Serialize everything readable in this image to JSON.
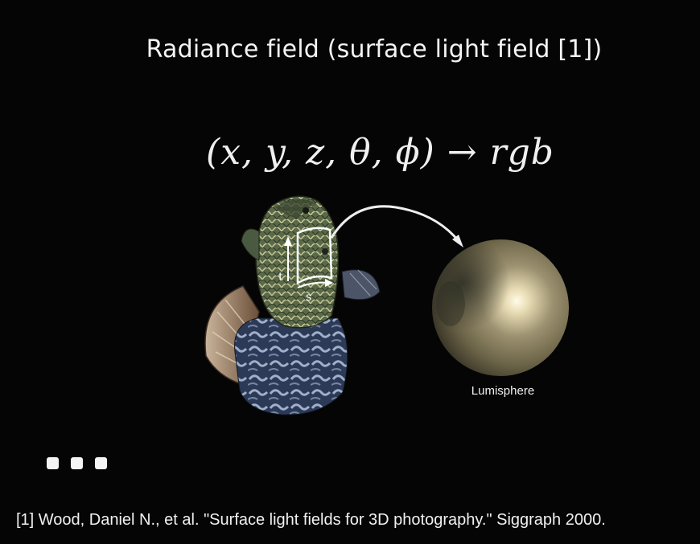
{
  "slide": {
    "title": "Radiance field (surface light field [1])",
    "formula": "(x, y, z, θ, ϕ) → rgb",
    "figure": {
      "axis_t_label": "t",
      "axis_s_label": "s",
      "lumisphere_label": "Lumisphere"
    },
    "continuation_dots": 3,
    "reference": "[1] Wood, Daniel N., et al. \"Surface light fields for 3D photography.\" Siggraph 2000."
  },
  "colors": {
    "background": "#050505",
    "text": "#f2f2f2",
    "sphere_highlight": "#fffbe8",
    "sphere_base": "#6d6549"
  }
}
